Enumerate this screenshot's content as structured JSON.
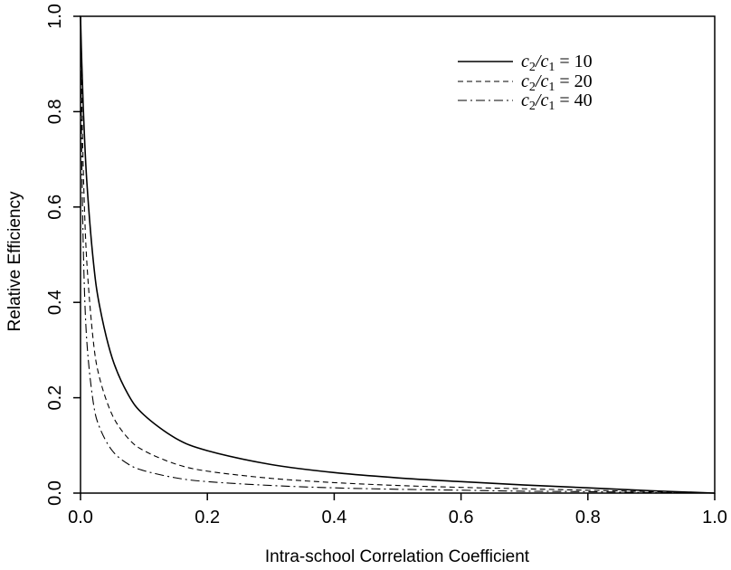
{
  "chart_data": {
    "type": "line",
    "title": "",
    "xlabel": "Intra-school Correlation Coefficient",
    "ylabel": "Relative Efficiency",
    "xlim": [
      0,
      1
    ],
    "ylim": [
      0,
      1
    ],
    "x_ticks": [
      "0.0",
      "0.2",
      "0.4",
      "0.6",
      "0.8",
      "1.0"
    ],
    "y_ticks": [
      "0.0",
      "0.2",
      "0.4",
      "0.6",
      "0.8",
      "1.0"
    ],
    "grid": false,
    "legend_position": "top-right",
    "x": [
      0.0,
      0.001,
      0.002,
      0.005,
      0.01,
      0.02,
      0.03,
      0.05,
      0.075,
      0.1,
      0.15,
      0.2,
      0.3,
      0.4,
      0.5,
      0.6,
      0.7,
      0.8,
      0.9,
      1.0
    ],
    "series": [
      {
        "name": "c2/c1 = 10",
        "style": "solid",
        "values": [
          1.0,
          0.948,
          0.902,
          0.787,
          0.652,
          0.489,
          0.393,
          0.283,
          0.207,
          0.164,
          0.115,
          0.089,
          0.06,
          0.043,
          0.032,
          0.024,
          0.017,
          0.011,
          0.005,
          0.0
        ]
      },
      {
        "name": "c2/c1 = 20",
        "style": "dashed",
        "values": [
          1.0,
          0.901,
          0.822,
          0.649,
          0.483,
          0.321,
          0.242,
          0.164,
          0.115,
          0.089,
          0.061,
          0.046,
          0.031,
          0.022,
          0.016,
          0.012,
          0.009,
          0.006,
          0.003,
          0.0
        ]
      },
      {
        "name": "c2/c1 = 40",
        "style": "dashdot",
        "values": [
          1.0,
          0.825,
          0.701,
          0.48,
          0.317,
          0.191,
          0.138,
          0.089,
          0.061,
          0.047,
          0.032,
          0.024,
          0.016,
          0.011,
          0.008,
          0.006,
          0.004,
          0.003,
          0.001,
          0.0
        ]
      }
    ]
  },
  "legend": {
    "lhs": "c2/c1 =",
    "entries": [
      "10",
      "20",
      "40"
    ]
  }
}
